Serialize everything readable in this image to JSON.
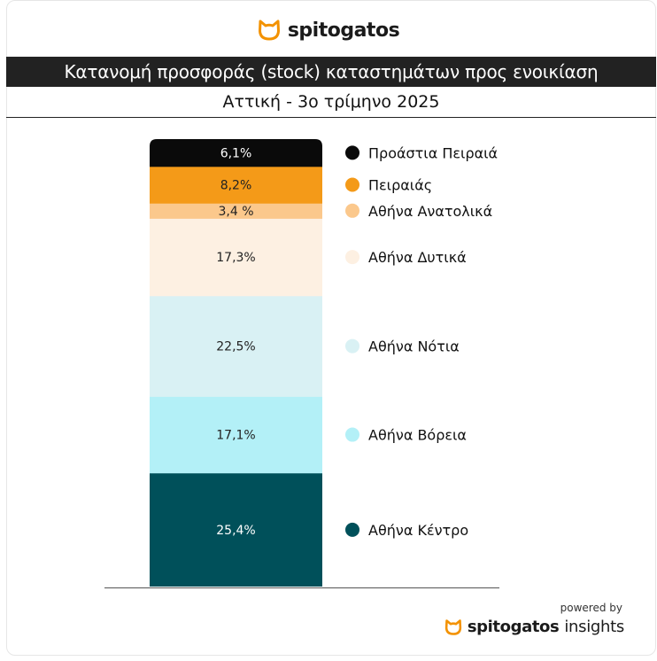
{
  "brand": {
    "name": "spitogatos",
    "logo_icon": "cat-head-icon",
    "accent": "#f39200"
  },
  "header": {
    "title": "Κατανομή προσφοράς (stock) καταστημάτων προς ενοικίαση",
    "subtitle": "Αττική - 3ο τρίμηνο 2025"
  },
  "chart_data": {
    "type": "bar",
    "stacked": true,
    "unit": "%",
    "legend_position": "right",
    "grid": false,
    "ylim": [
      0,
      100
    ],
    "series": [
      {
        "name": "Αθήνα Κέντρο",
        "value": 25.4,
        "label": "25,4%",
        "color": "#00505a"
      },
      {
        "name": "Αθήνα Βόρεια",
        "value": 17.1,
        "label": "17,1%",
        "color": "#b3f0f7"
      },
      {
        "name": "Αθήνα Νότια",
        "value": 22.5,
        "label": "22,5%",
        "color": "#d9f1f4"
      },
      {
        "name": "Αθήνα Δυτικά",
        "value": 17.3,
        "label": "17,3%",
        "color": "#fdf0e2"
      },
      {
        "name": "Αθήνα Ανατολικά",
        "value": 3.4,
        "label": "3,4 %",
        "color": "#fbc88c"
      },
      {
        "name": "Πειραιάς",
        "value": 8.2,
        "label": "8,2%",
        "color": "#f49a18"
      },
      {
        "name": "Προάστια Πειραιά",
        "value": 6.1,
        "label": "6,1%",
        "color": "#0a0a0a"
      }
    ]
  },
  "footer": {
    "powered_by": "powered by",
    "brand": "spitogatos",
    "suffix": "insights"
  }
}
